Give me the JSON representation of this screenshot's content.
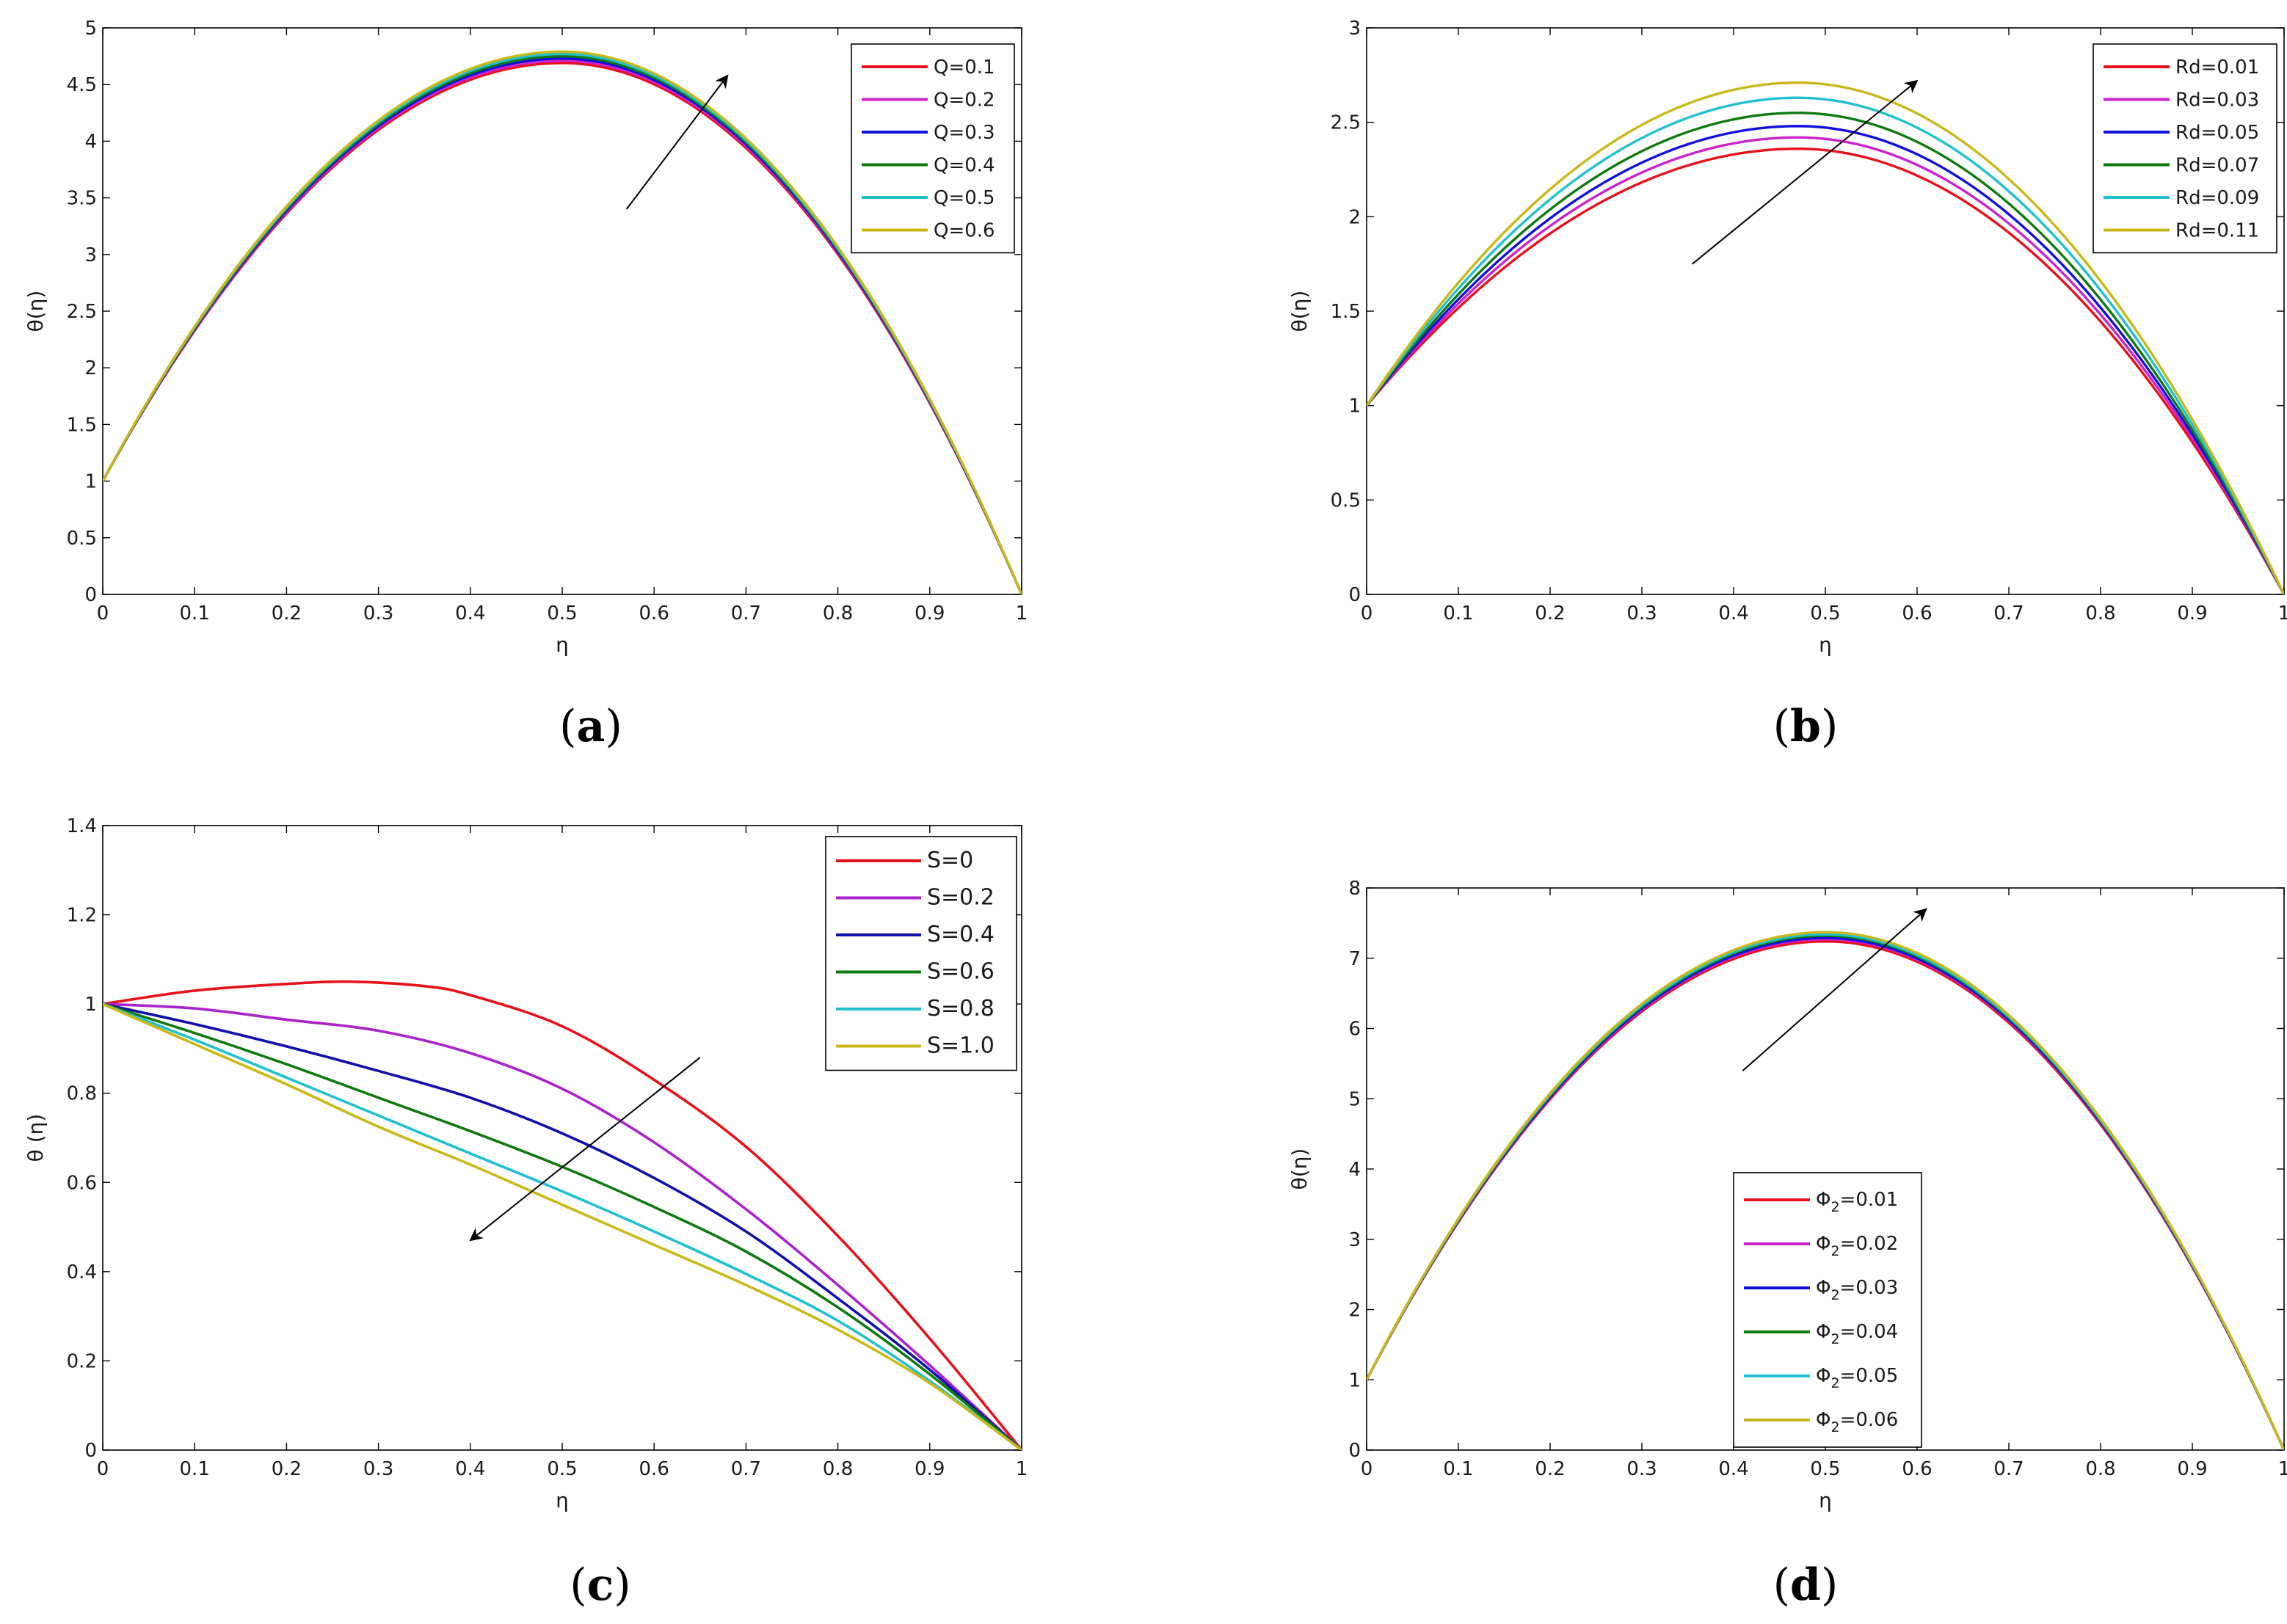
{
  "chart_data": [
    {
      "id": "a",
      "type": "line",
      "panel_label": "(a)",
      "panel_letter": "a",
      "xlabel": "η",
      "ylabel": "θ(η)",
      "xlim": [
        0,
        1
      ],
      "ylim": [
        0,
        5
      ],
      "xticks": [
        0,
        0.1,
        0.2,
        0.3,
        0.4,
        0.5,
        0.6,
        0.7,
        0.8,
        0.9,
        1
      ],
      "xtick_labels": [
        "0",
        "0.1",
        "0.2",
        "0.3",
        "0.4",
        "0.5",
        "0.6",
        "0.7",
        "0.8",
        "0.9",
        "1"
      ],
      "yticks": [
        0,
        0.5,
        1,
        1.5,
        2,
        2.5,
        3,
        3.5,
        4,
        4.5,
        5
      ],
      "ytick_labels": [
        "0",
        "0.5",
        "1",
        "1.5",
        "2",
        "2.5",
        "3",
        "3.5",
        "4",
        "4.5",
        "5"
      ],
      "legend_position": "top-right",
      "curve_model": {
        "form": "peak",
        "x_peak": 0.5,
        "y_left": 1.0,
        "y_right": 0.0
      },
      "series": [
        {
          "name": "Q=0.1",
          "color": "#e8101a",
          "peak": 4.69
        },
        {
          "name": "Q=0.2",
          "color": "#cc22cc",
          "peak": 4.71
        },
        {
          "name": "Q=0.3",
          "color": "#1010dd",
          "peak": 4.73
        },
        {
          "name": "Q=0.4",
          "color": "#0f7a10",
          "peak": 4.75
        },
        {
          "name": "Q=0.5",
          "color": "#20c0d0",
          "peak": 4.77
        },
        {
          "name": "Q=0.6",
          "color": "#c8b818",
          "peak": 4.79
        }
      ],
      "arrow": {
        "from": [
          0.57,
          3.4
        ],
        "to": [
          0.68,
          4.58
        ]
      }
    },
    {
      "id": "b",
      "type": "line",
      "panel_label": "(b)",
      "panel_letter": "b",
      "xlabel": "η",
      "ylabel": "θ(η)",
      "xlim": [
        0,
        1
      ],
      "ylim": [
        0,
        3
      ],
      "xticks": [
        0,
        0.1,
        0.2,
        0.3,
        0.4,
        0.5,
        0.6,
        0.7,
        0.8,
        0.9,
        1
      ],
      "xtick_labels": [
        "0",
        "0.1",
        "0.2",
        "0.3",
        "0.4",
        "0.5",
        "0.6",
        "0.7",
        "0.8",
        "0.9",
        "1"
      ],
      "yticks": [
        0,
        0.5,
        1,
        1.5,
        2,
        2.5,
        3
      ],
      "ytick_labels": [
        "0",
        "0.5",
        "1",
        "1.5",
        "2",
        "2.5",
        "3"
      ],
      "legend_position": "top-right",
      "curve_model": {
        "form": "peak",
        "x_peak": 0.47,
        "y_left": 1.0,
        "y_right": 0.0
      },
      "series": [
        {
          "name": "Rd=0.01",
          "color": "#e8101a",
          "peak": 2.36
        },
        {
          "name": "Rd=0.03",
          "color": "#cc22cc",
          "peak": 2.42
        },
        {
          "name": "Rd=0.05",
          "color": "#1010dd",
          "peak": 2.48
        },
        {
          "name": "Rd=0.07",
          "color": "#0f7a10",
          "peak": 2.55
        },
        {
          "name": "Rd=0.09",
          "color": "#20c0d0",
          "peak": 2.63
        },
        {
          "name": "Rd=0.11",
          "color": "#c8b818",
          "peak": 2.71
        }
      ],
      "arrow": {
        "from": [
          0.355,
          1.75
        ],
        "to": [
          0.6,
          2.72
        ]
      }
    },
    {
      "id": "c",
      "type": "line",
      "panel_label": "(c)",
      "panel_letter": "c",
      "xlabel": "η",
      "ylabel": "θ (η)",
      "xlim": [
        0,
        1
      ],
      "ylim": [
        0,
        1.4
      ],
      "xticks": [
        0,
        0.1,
        0.2,
        0.3,
        0.4,
        0.5,
        0.6,
        0.7,
        0.8,
        0.9,
        1
      ],
      "xtick_labels": [
        "0",
        "0.1",
        "0.2",
        "0.3",
        "0.4",
        "0.5",
        "0.6",
        "0.7",
        "0.8",
        "0.9",
        "1"
      ],
      "yticks": [
        0,
        0.2,
        0.4,
        0.6,
        0.8,
        1,
        1.2,
        1.4
      ],
      "ytick_labels": [
        "0",
        "0.2",
        "0.4",
        "0.6",
        "0.8",
        "1",
        "1.2",
        "1.4"
      ],
      "legend_position": "top-right",
      "curve_model": {
        "form": "decay"
      },
      "series": [
        {
          "name": "S=0",
          "color": "#e8101a",
          "x": [
            0,
            0.1,
            0.2,
            0.27,
            0.35,
            0.4,
            0.5,
            0.6,
            0.7,
            0.8,
            0.9,
            1
          ],
          "y": [
            1.0,
            1.03,
            1.045,
            1.05,
            1.04,
            1.02,
            0.95,
            0.83,
            0.68,
            0.48,
            0.25,
            0.0
          ]
        },
        {
          "name": "S=0.2",
          "color": "#aa22cc",
          "x": [
            0,
            0.1,
            0.2,
            0.3,
            0.4,
            0.5,
            0.6,
            0.7,
            0.8,
            0.9,
            1
          ],
          "y": [
            1.0,
            0.99,
            0.965,
            0.94,
            0.89,
            0.81,
            0.69,
            0.54,
            0.37,
            0.19,
            0.0
          ]
        },
        {
          "name": "S=0.4",
          "color": "#1010aa",
          "x": [
            0,
            0.1,
            0.2,
            0.3,
            0.4,
            0.5,
            0.6,
            0.7,
            0.8,
            0.9,
            1
          ],
          "y": [
            1.0,
            0.955,
            0.905,
            0.85,
            0.79,
            0.71,
            0.61,
            0.49,
            0.34,
            0.18,
            0.0
          ]
        },
        {
          "name": "S=0.6",
          "color": "#0f7a10",
          "x": [
            0,
            0.1,
            0.2,
            0.3,
            0.4,
            0.5,
            0.6,
            0.7,
            0.8,
            0.9,
            1
          ],
          "y": [
            1.0,
            0.935,
            0.865,
            0.79,
            0.715,
            0.635,
            0.545,
            0.445,
            0.32,
            0.17,
            0.0
          ]
        },
        {
          "name": "S=0.8",
          "color": "#20c0d0",
          "x": [
            0,
            0.1,
            0.2,
            0.3,
            0.4,
            0.5,
            0.6,
            0.7,
            0.8,
            0.9,
            1
          ],
          "y": [
            1.0,
            0.92,
            0.835,
            0.75,
            0.665,
            0.58,
            0.49,
            0.395,
            0.29,
            0.155,
            0.0
          ]
        },
        {
          "name": "S=1.0",
          "color": "#c8b818",
          "x": [
            0,
            0.1,
            0.2,
            0.3,
            0.4,
            0.5,
            0.6,
            0.7,
            0.8,
            0.9,
            1
          ],
          "y": [
            1.0,
            0.91,
            0.82,
            0.725,
            0.64,
            0.55,
            0.46,
            0.37,
            0.27,
            0.15,
            0.0
          ]
        }
      ],
      "arrow": {
        "from": [
          0.65,
          0.88
        ],
        "to": [
          0.4,
          0.47
        ]
      }
    },
    {
      "id": "d",
      "type": "line",
      "panel_label": "(d)",
      "panel_letter": "d",
      "xlabel": "η",
      "ylabel": "θ(η)",
      "xlim": [
        0,
        1
      ],
      "ylim": [
        0,
        8
      ],
      "xticks": [
        0,
        0.1,
        0.2,
        0.3,
        0.4,
        0.5,
        0.6,
        0.7,
        0.8,
        0.9,
        1
      ],
      "xtick_labels": [
        "0",
        "0.1",
        "0.2",
        "0.3",
        "0.4",
        "0.5",
        "0.6",
        "0.7",
        "0.8",
        "0.9",
        "1"
      ],
      "yticks": [
        0,
        1,
        2,
        3,
        4,
        5,
        6,
        7,
        8
      ],
      "ytick_labels": [
        "0",
        "1",
        "2",
        "3",
        "4",
        "5",
        "6",
        "7",
        "8"
      ],
      "legend_position": "bottom-center",
      "curve_model": {
        "form": "peak",
        "x_peak": 0.5,
        "y_left": 1.0,
        "y_right": 0.0
      },
      "series": [
        {
          "name": "Φ2=0.01",
          "label_main": "Φ",
          "label_sub": "2",
          "label_rest": "=0.01",
          "color": "#e8101a",
          "peak": 7.24
        },
        {
          "name": "Φ2=0.02",
          "label_main": "Φ",
          "label_sub": "2",
          "label_rest": "=0.02",
          "color": "#cc22cc",
          "peak": 7.27
        },
        {
          "name": "Φ2=0.03",
          "label_main": "Φ",
          "label_sub": "2",
          "label_rest": "=0.03",
          "color": "#1010dd",
          "peak": 7.29
        },
        {
          "name": "Φ2=0.04",
          "label_main": "Φ",
          "label_sub": "2",
          "label_rest": "=0.04",
          "color": "#0f7a10",
          "peak": 7.32
        },
        {
          "name": "Φ2=0.05",
          "label_main": "Φ",
          "label_sub": "2",
          "label_rest": "=0.05",
          "color": "#20c0d0",
          "peak": 7.34
        },
        {
          "name": "Φ2=0.06",
          "label_main": "Φ",
          "label_sub": "2",
          "label_rest": "=0.06",
          "color": "#c8b818",
          "peak": 7.37
        }
      ],
      "arrow": {
        "from": [
          0.41,
          5.4
        ],
        "to": [
          0.61,
          7.7
        ]
      }
    }
  ]
}
